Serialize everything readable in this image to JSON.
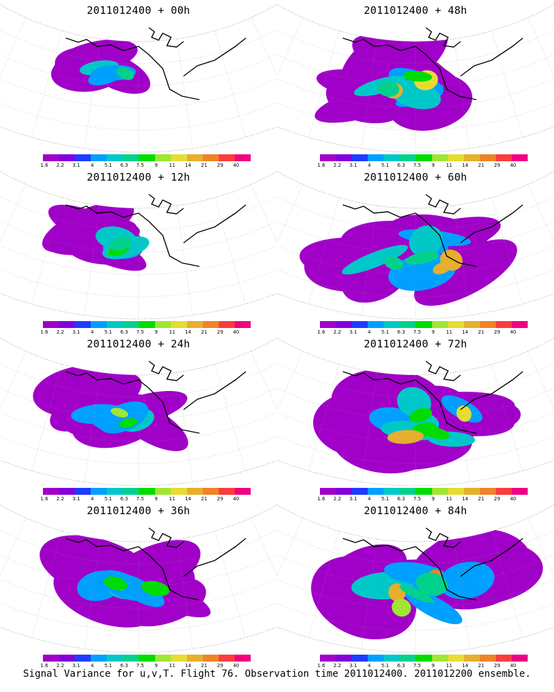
{
  "chart_data": {
    "type": "heatmap",
    "caption": "Signal Variance for u,v,T. Flight 76. Observation time 2011012400. 2011012200 ensemble.",
    "colorbar": {
      "levels": [
        "1.6",
        "2.2",
        "3.1",
        "4",
        "5.1",
        "6.3",
        "7.5",
        "9",
        "11",
        "14",
        "21",
        "29",
        "40"
      ],
      "colors": [
        "#a000c8",
        "#8200dc",
        "#1e3cff",
        "#00a0ff",
        "#00c8c8",
        "#00d28c",
        "#00dc00",
        "#a0e632",
        "#e6dc32",
        "#e6af2d",
        "#f08228",
        "#fa3c3c",
        "#f00082"
      ]
    },
    "panels": [
      {
        "title": "2011012400 + 00h",
        "lead_hours": 0
      },
      {
        "title": "2011012400 + 48h",
        "lead_hours": 48
      },
      {
        "title": "2011012400 + 12h",
        "lead_hours": 12
      },
      {
        "title": "2011012400 + 60h",
        "lead_hours": 60
      },
      {
        "title": "2011012400 + 24h",
        "lead_hours": 24
      },
      {
        "title": "2011012400 + 72h",
        "lead_hours": 72
      },
      {
        "title": "2011012400 + 36h",
        "lead_hours": 36
      },
      {
        "title": "2011012400 + 84h",
        "lead_hours": 84
      }
    ]
  }
}
